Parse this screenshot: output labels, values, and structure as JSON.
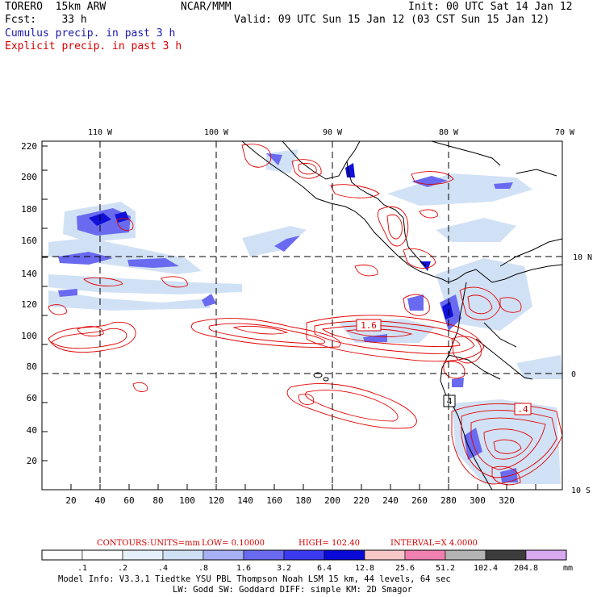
{
  "header": {
    "line1_left": "TORERO  15km ARW",
    "line1_center": "NCAR/MMM",
    "line1_right": "Init: 00 UTC Sat 14 Jan 12",
    "line2_left": "Fcst:    33 h",
    "line2_right": "Valid: 09 UTC Sun 15 Jan 12 (03 CST Sun 15 Jan 12)",
    "line3": "Cumulus precip. in past 3 h",
    "line4": "Explicit precip. in past 3 h"
  },
  "map": {
    "lon_ticks": [
      "110 W",
      "100 W",
      "90 W",
      "80 W",
      "70 W"
    ],
    "lat_ticks": [
      "10 N",
      "0",
      "10 S"
    ],
    "x_ticks": [
      "20",
      "40",
      "60",
      "80",
      "100",
      "120",
      "140",
      "160",
      "180",
      "200",
      "220",
      "240",
      "260",
      "280",
      "300",
      "320"
    ],
    "y_ticks": [
      "220",
      "200",
      "180",
      "160",
      "140",
      "120",
      "100",
      "80",
      "60",
      "40",
      "20"
    ],
    "box_labels": [
      "1.6",
      "4",
      ".4"
    ],
    "colors": {
      "coast": "#000000",
      "grid": "#000000",
      "explicit_contour": "#e00000",
      "cumulus_light": "#c8d8f4",
      "cumulus_mid": "#6a6af0",
      "cumulus_dark": "#1010d8"
    }
  },
  "contour_info": {
    "contours_label": "CONTOURS:",
    "units": "UNITS=mm",
    "low": "LOW= 0.10000",
    "high": "HIGH= 102.40",
    "interval": "INTERVAL=X 4.0000"
  },
  "colorbar": {
    "labels": [
      ".1",
      ".2",
      ".4",
      ".8",
      "1.6",
      "3.2",
      "6.4",
      "12.8",
      "25.6",
      "51.2",
      "102.4",
      "204.8",
      "mm"
    ],
    "colors": [
      "#ffffff",
      "#ffffff",
      "#e6f0fb",
      "#cfe0f5",
      "#a8b0f4",
      "#6a6af0",
      "#3a3af0",
      "#0a0ad8",
      "#f8c8c8",
      "#f080b0",
      "#b4b4b4",
      "#3c3c3c",
      "#d8a8f0"
    ]
  },
  "footer": {
    "line1": "Model Info: V3.3.1    Tiedtke YSU PBL  Thompson    Noah LSM  15 km,   44 levels,   64 sec",
    "line2": "LW: Godd SW: Goddard DIFF: simple KM: 2D Smagor"
  }
}
